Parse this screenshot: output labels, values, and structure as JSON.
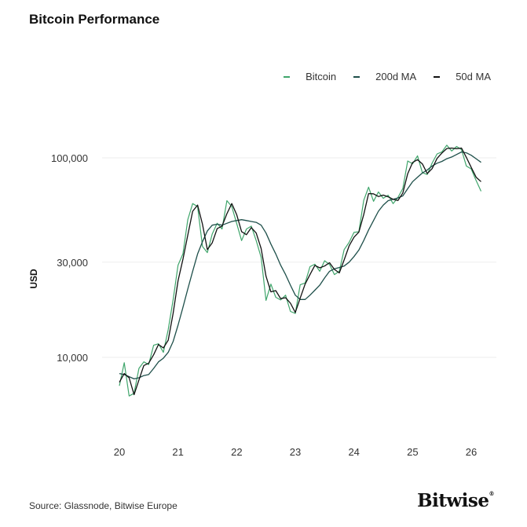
{
  "chart_data": {
    "type": "line",
    "title": "Bitcoin Performance",
    "ylabel": "USD",
    "xlabel": "",
    "y_scale": "log",
    "ylim": [
      3800,
      140000
    ],
    "xlim": [
      "2019-12",
      "2026-04"
    ],
    "y_ticks": [
      {
        "value": 10000,
        "label": "10,000"
      },
      {
        "value": 30000,
        "label": "30,000"
      },
      {
        "value": 100000,
        "label": "100,000"
      }
    ],
    "x_ticks": [
      {
        "value": 2020,
        "label": "20"
      },
      {
        "value": 2021,
        "label": "21"
      },
      {
        "value": 2022,
        "label": "22"
      },
      {
        "value": 2023,
        "label": "23"
      },
      {
        "value": 2024,
        "label": "24"
      },
      {
        "value": 2025,
        "label": "25"
      },
      {
        "value": 2026,
        "label": "26"
      }
    ],
    "grid": "horizontal",
    "legend_position": "top-right",
    "dates": [
      "2020-01",
      "2020-02",
      "2020-03",
      "2020-04",
      "2020-05",
      "2020-06",
      "2020-07",
      "2020-08",
      "2020-09",
      "2020-10",
      "2020-11",
      "2020-12",
      "2021-01",
      "2021-02",
      "2021-03",
      "2021-04",
      "2021-05",
      "2021-06",
      "2021-07",
      "2021-08",
      "2021-09",
      "2021-10",
      "2021-11",
      "2021-12",
      "2022-01",
      "2022-02",
      "2022-03",
      "2022-04",
      "2022-05",
      "2022-06",
      "2022-07",
      "2022-08",
      "2022-09",
      "2022-10",
      "2022-11",
      "2022-12",
      "2023-01",
      "2023-02",
      "2023-03",
      "2023-04",
      "2023-05",
      "2023-06",
      "2023-07",
      "2023-08",
      "2023-09",
      "2023-10",
      "2023-11",
      "2023-12",
      "2024-01",
      "2024-02",
      "2024-03",
      "2024-04",
      "2024-05",
      "2024-06",
      "2024-07",
      "2024-08",
      "2024-09",
      "2024-10",
      "2024-11",
      "2024-12",
      "2025-01",
      "2025-02",
      "2025-03",
      "2025-04",
      "2025-05",
      "2025-06",
      "2025-07",
      "2025-08",
      "2025-09",
      "2025-10",
      "2025-11",
      "2025-12",
      "2026-01",
      "2026-02",
      "2026-03"
    ],
    "series": [
      {
        "name": "Bitcoin",
        "color": "#3fa56b",
        "values": [
          7200,
          9400,
          6400,
          6600,
          8800,
          9500,
          9200,
          11500,
          11700,
          10600,
          13800,
          19400,
          29000,
          33000,
          49000,
          59000,
          57000,
          36000,
          33500,
          41500,
          47000,
          44000,
          61000,
          57000,
          47000,
          38500,
          44000,
          45500,
          38500,
          31700,
          19300,
          23300,
          20000,
          19400,
          20500,
          17000,
          16600,
          23100,
          23600,
          28500,
          29300,
          27000,
          30500,
          29200,
          26000,
          27000,
          34700,
          37700,
          42300,
          42600,
          61200,
          71300,
          60600,
          67500,
          62700,
          65000,
          59000,
          63300,
          70200,
          96400,
          93400,
          102400,
          84300,
          82500,
          94200,
          104600,
          107100,
          115700,
          108200,
          114000,
          110000,
          91000,
          88000,
          77000,
          68000
        ]
      },
      {
        "name": "200d MA",
        "color": "#1e4f4a",
        "values": [
          8300,
          8200,
          8000,
          7800,
          7900,
          8100,
          8200,
          8800,
          9500,
          9900,
          10600,
          12000,
          14500,
          17800,
          22000,
          27000,
          33000,
          38000,
          43000,
          46000,
          46500,
          46000,
          47000,
          48000,
          48500,
          49000,
          48500,
          48000,
          47500,
          46000,
          42000,
          37000,
          33000,
          29000,
          26000,
          23000,
          20500,
          19500,
          19500,
          20500,
          21700,
          23000,
          25000,
          27000,
          27800,
          28200,
          28700,
          30000,
          32000,
          34500,
          38500,
          43500,
          48500,
          54000,
          58000,
          61000,
          62000,
          63000,
          64500,
          70000,
          76000,
          80000,
          84000,
          87000,
          91000,
          94000,
          96000,
          99000,
          101000,
          104000,
          107000,
          106000,
          103000,
          99000,
          95000
        ]
      },
      {
        "name": "50d MA",
        "color": "#111111",
        "values": [
          7500,
          8300,
          7900,
          6500,
          7700,
          9100,
          9350,
          10300,
          11600,
          11150,
          12200,
          16600,
          24200,
          31000,
          41000,
          54000,
          58000,
          46500,
          34700,
          37500,
          44200,
          45500,
          52500,
          59000,
          52000,
          42700,
          41200,
          44700,
          42000,
          35100,
          25500,
          21300,
          21600,
          19700,
          19900,
          18700,
          16800,
          19800,
          23300,
          26000,
          28900,
          28100,
          28700,
          29800,
          27600,
          26500,
          30800,
          36200,
          40000,
          42400,
          51900,
          66200,
          66000,
          64000,
          65100,
          63800,
          62000,
          61100,
          66700,
          83300,
          94900,
          97900,
          93300,
          83400,
          88300,
          99400,
          105800,
          111400,
          112000,
          111100,
          112000,
          100500,
          89500,
          80000,
          76000
        ]
      }
    ],
    "source": "Source: Glassnode, Bitwise Europe"
  },
  "brand": {
    "logo_text": "Bitwise"
  }
}
